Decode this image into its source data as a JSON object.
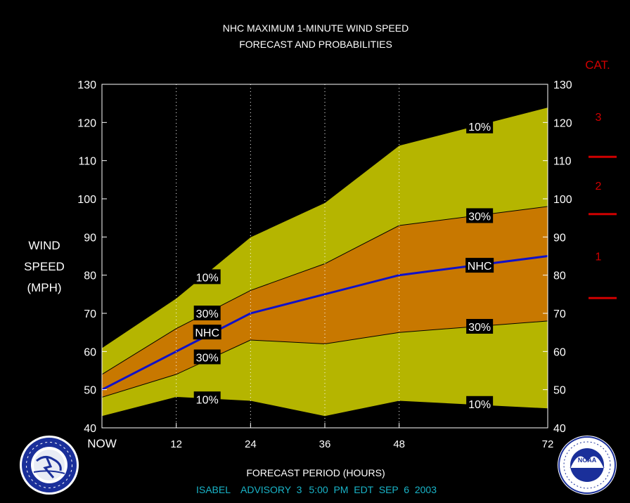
{
  "chart_data": {
    "type": "area",
    "title": "NHC MAXIMUM 1-MINUTE WIND SPEED",
    "subtitle": "FORECAST AND PROBABILITIES",
    "xlabel": "FORECAST PERIOD (HOURS)",
    "ylabel_lines": [
      "WIND",
      "SPEED",
      "(MPH)"
    ],
    "x_ticks": [
      0,
      12,
      24,
      36,
      48,
      72
    ],
    "x_tick_labels": [
      "NOW",
      "12",
      "24",
      "36",
      "48",
      "72"
    ],
    "ylim": [
      40,
      130
    ],
    "y_ticks": [
      40,
      50,
      60,
      70,
      80,
      90,
      100,
      110,
      120,
      130
    ],
    "x": [
      0,
      12,
      24,
      36,
      48,
      72
    ],
    "series": [
      {
        "name": "10%",
        "band": "upper",
        "values": [
          61,
          74,
          90,
          99,
          114,
          124
        ]
      },
      {
        "name": "30%",
        "band": "upper",
        "values": [
          54,
          66,
          76,
          83,
          93,
          98
        ]
      },
      {
        "name": "NHC",
        "values": [
          50,
          60,
          70,
          75,
          80,
          85
        ]
      },
      {
        "name": "30%",
        "band": "lower",
        "values": [
          48,
          54,
          63,
          62,
          65,
          68
        ]
      },
      {
        "name": "10%",
        "band": "lower",
        "values": [
          43,
          48,
          47,
          43,
          47,
          45
        ]
      }
    ],
    "labels": [
      {
        "text": "10%",
        "x": 17,
        "y": 79.5
      },
      {
        "text": "30%",
        "x": 17,
        "y": 70
      },
      {
        "text": "NHC",
        "x": 17,
        "y": 65
      },
      {
        "text": "30%",
        "x": 17,
        "y": 58.5
      },
      {
        "text": "10%",
        "x": 17,
        "y": 47.5
      },
      {
        "text": "10%",
        "x": 61,
        "y": 119
      },
      {
        "text": "30%",
        "x": 61,
        "y": 95.5
      },
      {
        "text": "NHC",
        "x": 61,
        "y": 82.5
      },
      {
        "text": "30%",
        "x": 61,
        "y": 66.5
      },
      {
        "text": "10%",
        "x": 61,
        "y": 46.3
      }
    ],
    "categories_header": "CAT.",
    "category_boundaries": [
      74,
      96,
      111
    ],
    "category_labels": [
      {
        "text": "1",
        "y": 85
      },
      {
        "text": "2",
        "y": 103.5
      },
      {
        "text": "3",
        "y": 121.5
      }
    ],
    "colors": {
      "outer_band": "#b5b500",
      "inner_band": "#c87800",
      "nhc_line": "#1010c8",
      "category": "#d00000",
      "footer": "#19b4c8"
    },
    "grid": "dotted vertical at forecast hours"
  },
  "footer": {
    "storm": "ISABEL",
    "advisory": "ADVISORY  3",
    "time": "5:00  PM  EDT  SEP  6  2003"
  },
  "logos": {
    "left": "NATIONAL WEATHER SERVICE",
    "right": "NOAA"
  }
}
